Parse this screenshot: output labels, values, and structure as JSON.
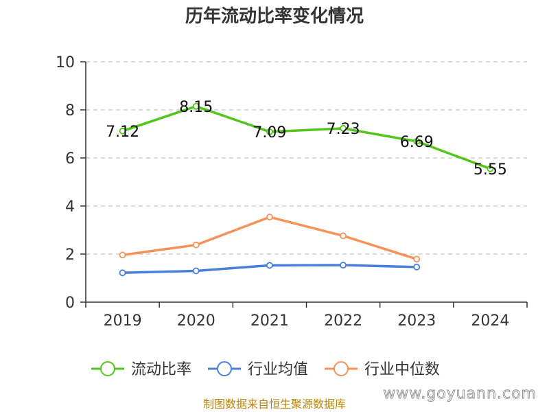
{
  "chart_data": {
    "type": "line",
    "title": "历年流动比率变化情况",
    "categories": [
      "2019",
      "2020",
      "2021",
      "2022",
      "2023",
      "2024"
    ],
    "ylim": [
      0,
      10
    ],
    "yticks": [
      "0",
      "2",
      "4",
      "6",
      "8",
      "10"
    ],
    "grid": true,
    "legend_position": "bottom",
    "series": [
      {
        "name": "流动比率",
        "color": "#52c41a",
        "values": [
          7.12,
          8.15,
          7.09,
          7.23,
          6.69,
          5.55
        ],
        "labels": [
          "7.12",
          "8.15",
          "7.09",
          "7.23",
          "6.69",
          "5.55"
        ]
      },
      {
        "name": "行业均值",
        "color": "#4a7fd9",
        "values": [
          1.22,
          1.3,
          1.53,
          1.54,
          1.46,
          null
        ]
      },
      {
        "name": "行业中位数",
        "color": "#f5925a",
        "values": [
          1.96,
          2.38,
          3.54,
          2.76,
          1.79,
          null
        ]
      }
    ]
  },
  "source": "制图数据来自恒生聚源数据库",
  "watermark": "www.goyuann.com"
}
